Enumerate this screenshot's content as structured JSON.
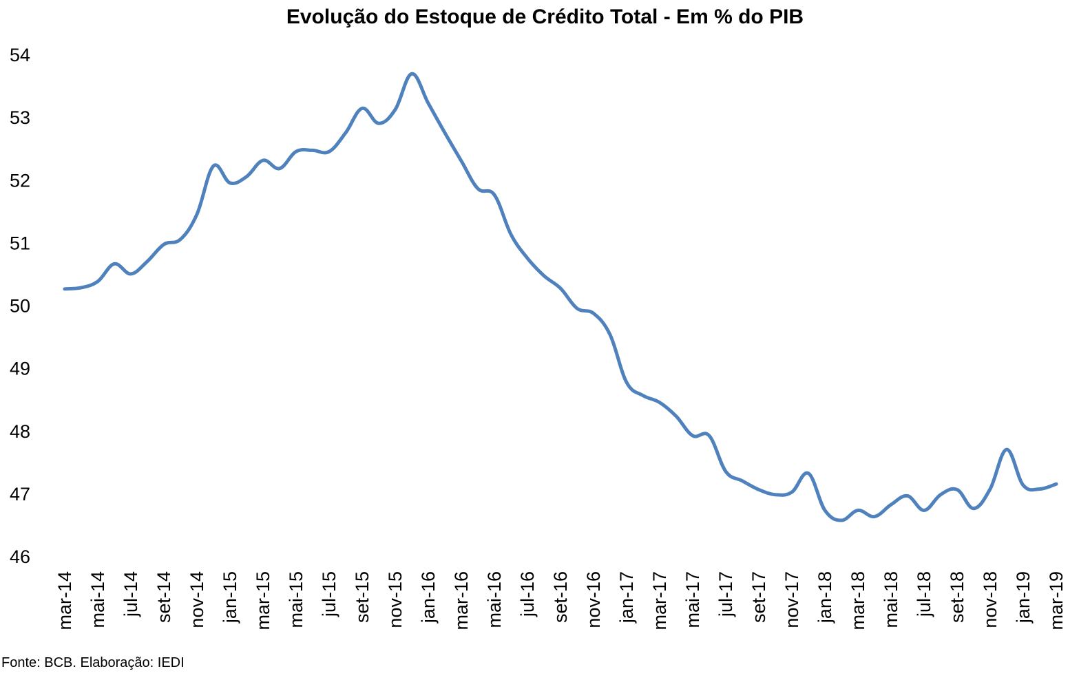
{
  "chart_data": {
    "type": "line",
    "title": "Evolução do Estoque de Crédito Total - Em % do PIB",
    "xlabel": "",
    "ylabel": "",
    "ylim": [
      46,
      54
    ],
    "yticks": [
      46,
      47,
      48,
      49,
      50,
      51,
      52,
      53,
      54
    ],
    "grid": false,
    "legend": "none",
    "line_color": "#4F81BD",
    "categories": [
      "mar-14",
      "abr-14",
      "mai-14",
      "jun-14",
      "jul-14",
      "ago-14",
      "set-14",
      "out-14",
      "nov-14",
      "dez-14",
      "jan-15",
      "fev-15",
      "mar-15",
      "abr-15",
      "mai-15",
      "jun-15",
      "jul-15",
      "ago-15",
      "set-15",
      "out-15",
      "nov-15",
      "dez-15",
      "jan-16",
      "fev-16",
      "mar-16",
      "abr-16",
      "mai-16",
      "jun-16",
      "jul-16",
      "ago-16",
      "set-16",
      "out-16",
      "nov-16",
      "dez-16",
      "jan-17",
      "fev-17",
      "mar-17",
      "abr-17",
      "mai-17",
      "jun-17",
      "jul-17",
      "ago-17",
      "set-17",
      "out-17",
      "nov-17",
      "dez-17",
      "jan-18",
      "fev-18",
      "mar-18",
      "abr-18",
      "mai-18",
      "jun-18",
      "jul-18",
      "ago-18",
      "set-18",
      "out-18",
      "nov-18",
      "dez-18",
      "jan-19",
      "fev-19",
      "mar-19"
    ],
    "tick_labels": [
      "mar-14",
      "mai-14",
      "jul-14",
      "set-14",
      "nov-14",
      "jan-15",
      "mar-15",
      "mai-15",
      "jul-15",
      "set-15",
      "nov-15",
      "jan-16",
      "mar-16",
      "mai-16",
      "jul-16",
      "set-16",
      "nov-16",
      "jan-17",
      "mar-17",
      "mai-17",
      "jul-17",
      "set-17",
      "nov-17",
      "jan-18",
      "mar-18",
      "mai-18",
      "jul-18",
      "set-18",
      "nov-18",
      "jan-19",
      "mar-19"
    ],
    "series": [
      {
        "name": "",
        "values": [
          50.26,
          50.28,
          50.38,
          50.66,
          50.5,
          50.7,
          50.97,
          51.05,
          51.45,
          52.22,
          51.95,
          52.05,
          52.31,
          52.18,
          52.45,
          52.47,
          52.45,
          52.75,
          53.14,
          52.9,
          53.12,
          53.69,
          53.22,
          52.75,
          52.3,
          51.86,
          51.76,
          51.13,
          50.75,
          50.47,
          50.27,
          49.95,
          49.87,
          49.53,
          48.77,
          48.56,
          48.45,
          48.23,
          47.92,
          47.92,
          47.35,
          47.2,
          47.06,
          46.98,
          47.02,
          47.32,
          46.73,
          46.57,
          46.73,
          46.63,
          46.82,
          46.96,
          46.73,
          46.98,
          47.06,
          46.76,
          47.07,
          47.7,
          47.13,
          47.07,
          47.15
        ]
      }
    ]
  },
  "source_note": "Fonte: BCB. Elaboração: IEDI"
}
